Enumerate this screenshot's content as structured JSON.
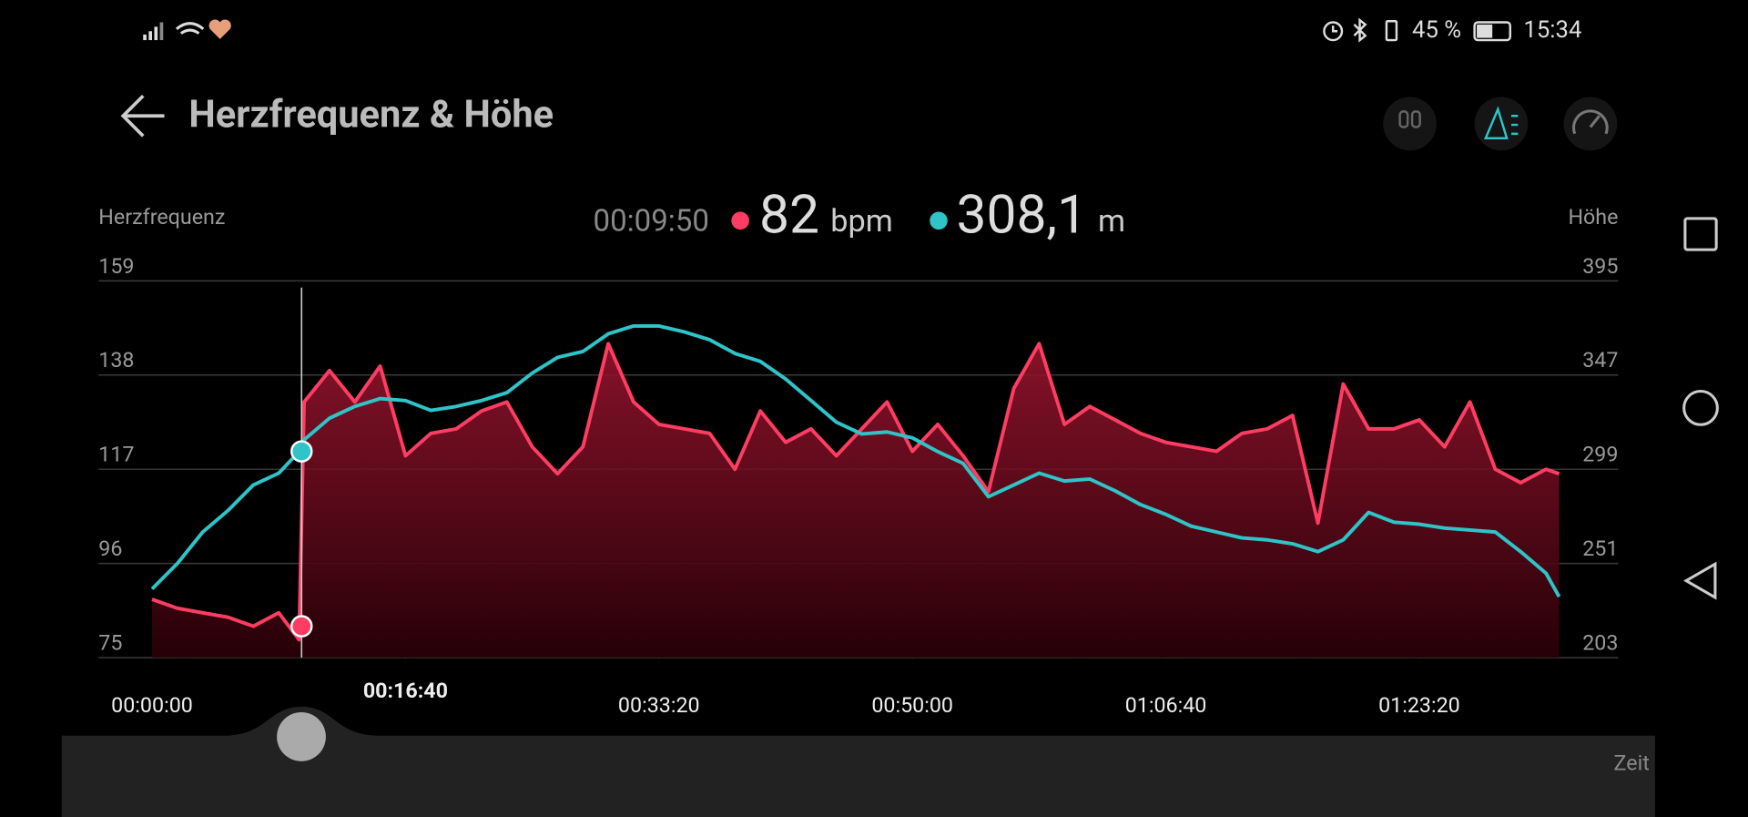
{
  "status_bar": {
    "battery": "45 %",
    "time": "15:34"
  },
  "header": {
    "title": "Herzfrequenz & Höhe"
  },
  "chart_data": {
    "type": "line",
    "y_label": "Herzfrequenz",
    "y2_label": "Höhe",
    "x_label": "Zeit",
    "cursor": {
      "time": {
        "value": 590,
        "label": "00:09:50"
      },
      "heart_rate": 82,
      "heart_rate_unit": "bpm",
      "altitude": {
        "value": 308.1,
        "label": "308,1"
      },
      "altitude_unit": "m"
    },
    "x": [
      0,
      100,
      200,
      300,
      400,
      500,
      580,
      600,
      700,
      800,
      900,
      1000,
      1100,
      1200,
      1300,
      1400,
      1500,
      1600,
      1700,
      1800,
      1900,
      2000,
      2100,
      2200,
      2300,
      2400,
      2500,
      2600,
      2700,
      2800,
      2900,
      3000,
      3100,
      3200,
      3300,
      3400,
      3500,
      3600,
      3700,
      3800,
      3900,
      4000,
      4100,
      4200,
      4300,
      4400,
      4500,
      4600,
      4700,
      4800,
      4900,
      5000,
      5100,
      5200,
      5300,
      5400,
      5500,
      5552
    ],
    "xlim": [
      0,
      5552
    ],
    "xticks": [
      {
        "value": 0,
        "label": "00:00:00"
      },
      {
        "value": 1000,
        "label": "00:16:40"
      },
      {
        "value": 2000,
        "label": "00:33:20"
      },
      {
        "value": 3000,
        "label": "00:50:00"
      },
      {
        "value": 4000,
        "label": "01:06:40"
      },
      {
        "value": 5000,
        "label": "01:23:20"
      }
    ],
    "ylim": [
      75,
      159
    ],
    "yticks": [
      75,
      96,
      117,
      138,
      159
    ],
    "y2lim": [
      203,
      395
    ],
    "y2ticks": [
      203,
      251,
      299,
      347,
      395
    ],
    "grid": true,
    "series": [
      {
        "color": "#ff3d63",
        "area": true,
        "values": [
          88,
          86,
          85,
          84,
          82,
          85,
          79,
          132,
          139,
          132,
          140,
          120,
          125,
          126,
          130,
          132,
          122,
          116,
          122,
          145,
          132,
          127,
          126,
          125,
          117,
          130,
          123,
          126,
          120,
          126,
          132,
          121,
          127,
          120,
          112,
          135,
          145,
          127,
          131,
          128,
          125,
          123,
          122,
          121,
          125,
          126,
          129,
          105,
          136,
          126,
          126,
          128,
          122,
          132,
          117,
          114,
          117,
          116
        ]
      },
      {
        "color": "#2ec4c8",
        "axis": "y2",
        "values": [
          238,
          251,
          267,
          278,
          291,
          297,
          308,
          314,
          325,
          331,
          335,
          334,
          329,
          331,
          334,
          338,
          348,
          356,
          359,
          368,
          372,
          372,
          369,
          365,
          358,
          354,
          345,
          334,
          323,
          317,
          318,
          315,
          308,
          302,
          285,
          291,
          297,
          293,
          294,
          288,
          281,
          276,
          270,
          267,
          264,
          263,
          261,
          257,
          263,
          277,
          272,
          271,
          269,
          268,
          267,
          257,
          246,
          234
        ]
      }
    ]
  }
}
